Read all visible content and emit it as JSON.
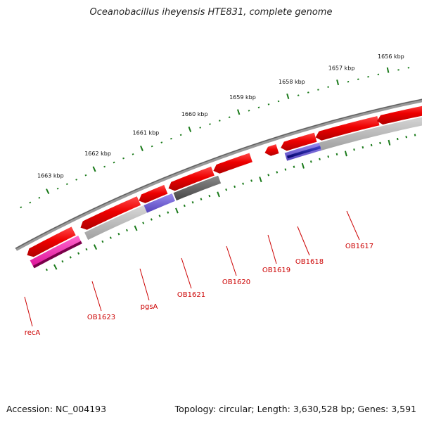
{
  "title": "Oceanobacillus iheyensis HTE831, complete genome",
  "footer": {
    "accession": "Accession: NC_004193",
    "topology": "Topology: circular; Length: 3,630,528 bp; Genes: 3,591"
  },
  "colors": {
    "backbone": "#8c8c8c",
    "tick": "#1a7a1a",
    "gene_red": "#ff0000",
    "gene_pink": "#ff22aa",
    "gene_purple": "#7766dd",
    "gene_navy": "#1a1a9a",
    "gene_grey": "#bdbdbd",
    "gene_dark": "#6a6a6a",
    "label": "#cc0000"
  },
  "ruler_labels": [
    "1656 kbp",
    "1657 kbp",
    "1658 kbp",
    "1659 kbp",
    "1660 kbp",
    "1661 kbp",
    "1662 kbp",
    "1663 kbp"
  ],
  "genes": [
    {
      "name": "OB1617"
    },
    {
      "name": "OB1618"
    },
    {
      "name": "OB1619"
    },
    {
      "name": "OB1620"
    },
    {
      "name": "OB1621"
    },
    {
      "name": "pgsA"
    },
    {
      "name": "OB1623"
    },
    {
      "name": "recA"
    }
  ]
}
